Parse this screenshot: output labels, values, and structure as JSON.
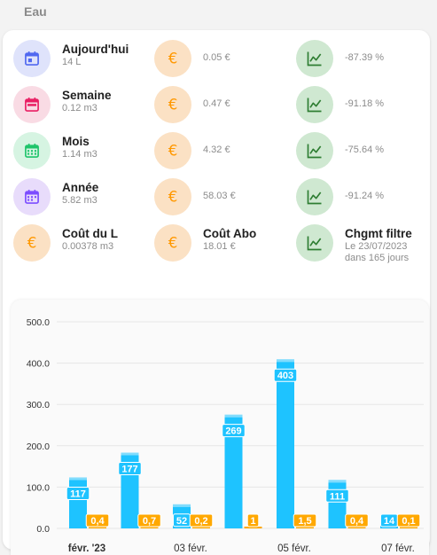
{
  "section_title": "Eau",
  "tiles": [
    {
      "name": "Aujourd'hui",
      "secondary": "14 L",
      "icon": "calendar-today-icon",
      "color": "#5068f0"
    },
    {
      "name": "",
      "secondary": "0.05 €",
      "icon": "euro-icon",
      "color": "#ff9800"
    },
    {
      "name": "",
      "secondary": "-87.39 %",
      "icon": "chart-line-icon",
      "color": "#2e7d32"
    },
    {
      "name": "Semaine",
      "secondary": "0.12 m3",
      "icon": "calendar-week-icon",
      "color": "#e91e63"
    },
    {
      "name": "",
      "secondary": "0.47 €",
      "icon": "euro-icon",
      "color": "#ff9800"
    },
    {
      "name": "",
      "secondary": "-91.18 %",
      "icon": "chart-line-icon",
      "color": "#2e7d32"
    },
    {
      "name": "Mois",
      "secondary": "1.14 m3",
      "icon": "calendar-month-icon",
      "color": "#1ec46a"
    },
    {
      "name": "",
      "secondary": "4.32 €",
      "icon": "euro-icon",
      "color": "#ff9800"
    },
    {
      "name": "",
      "secondary": "-75.64 %",
      "icon": "chart-line-icon",
      "color": "#2e7d32"
    },
    {
      "name": "Année",
      "secondary": "5.82 m3",
      "icon": "calendar-year-icon",
      "color": "#7c4dff"
    },
    {
      "name": "",
      "secondary": "58.03 €",
      "icon": "euro-icon",
      "color": "#ff9800"
    },
    {
      "name": "",
      "secondary": "-91.24 %",
      "icon": "chart-line-icon",
      "color": "#2e7d32"
    },
    {
      "name": "Coût du L",
      "secondary": "0.00378 m3",
      "icon": "euro-icon",
      "color": "#ff9800"
    },
    {
      "name": "Coût Abo",
      "secondary": "18.01 €",
      "icon": "euro-icon",
      "color": "#ff9800"
    },
    {
      "name": "Chgmt filtre",
      "secondary": "Le 23/07/2023",
      "secondary2": "dans 165 jours",
      "icon": "chart-line-icon",
      "color": "#2e7d32"
    }
  ],
  "chart_data": {
    "type": "bar",
    "categories": [
      "févr. '23",
      "",
      "03 févr.",
      "",
      "05 févr.",
      "",
      "07 févr."
    ],
    "bold_first_category": true,
    "series": [
      {
        "values": [
          117,
          177,
          52,
          269,
          403,
          111,
          14
        ],
        "labels": [
          "117",
          "177",
          "52",
          "269",
          "403",
          "111",
          "14"
        ],
        "color": "#1ec3ff"
      },
      {
        "values": [
          0.4,
          0.7,
          0.2,
          1,
          1.5,
          0.4,
          0.1
        ],
        "labels": [
          "0,4",
          "0,7",
          "0,2",
          "1",
          "1,5",
          "0,4",
          "0,1"
        ],
        "color": "#ffa800"
      }
    ],
    "yticks": [
      "0.0",
      "100.0",
      "200.0",
      "300.0",
      "400.0",
      "500.0"
    ],
    "ylim": [
      0,
      500
    ],
    "grid": true
  }
}
